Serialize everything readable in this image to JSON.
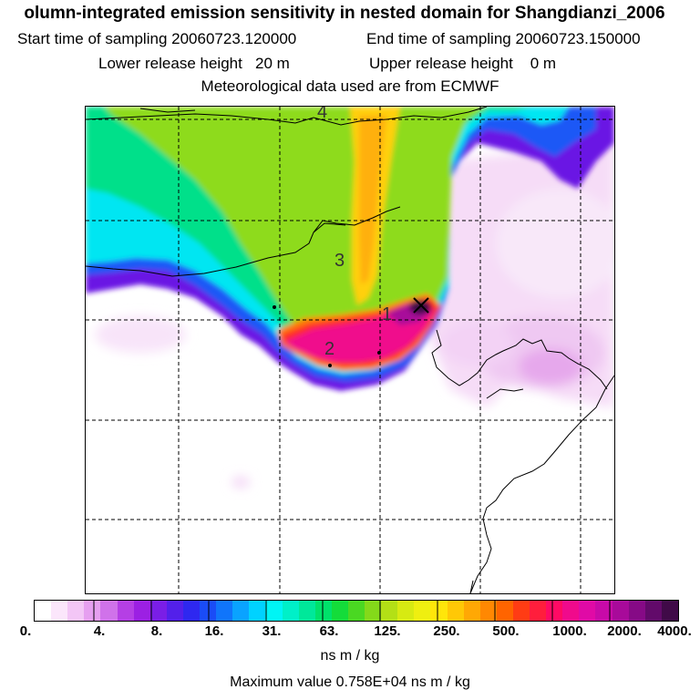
{
  "title": {
    "main": "olumn-integrated emission sensitivity in nested domain for Shangdianzi_2006",
    "start_label": "Start time of sampling",
    "start_value": "20060723.120000",
    "end_label": "End time of sampling",
    "end_value": "20060723.150000",
    "lower_label": "Lower release height",
    "lower_value": "20 m",
    "upper_label": "Upper release height",
    "upper_value": "0 m",
    "met_line": "Meteorological data used are from ECMWF"
  },
  "map": {
    "trajectory_labels": [
      "1",
      "2",
      "3",
      "4"
    ],
    "station_marker": "receptor-cross",
    "grid": "dashed"
  },
  "colorbar": {
    "colors": [
      "#ffffff",
      "#fbe6fb",
      "#f3c6f6",
      "#e69ff0",
      "#d072ea",
      "#b53fe5",
      "#9c20e3",
      "#7a1ee6",
      "#5320ea",
      "#2e28f0",
      "#1a4cf7",
      "#1075fb",
      "#0aa3ff",
      "#00d2ff",
      "#00f5f5",
      "#00f0c8",
      "#00e89a",
      "#00e26a",
      "#14dc3a",
      "#4ad822",
      "#84d91a",
      "#b3e016",
      "#d7ea12",
      "#efef10",
      "#ffe60a",
      "#ffc806",
      "#ffa804",
      "#ff8802",
      "#ff6400",
      "#ff3c14",
      "#ff1e3c",
      "#ff0a64",
      "#f00a8c",
      "#e00aa6",
      "#c80aa8",
      "#a80a9a",
      "#860a86",
      "#620a6a",
      "#400a48"
    ],
    "tick_labels": [
      "0.",
      "4.",
      "8.",
      "16.",
      "31.",
      "63.",
      "125.",
      "250.",
      "500.",
      "1000.",
      "2000.",
      "4000."
    ],
    "unit": "ns m / kg"
  },
  "max_value_text": "Maximum value  0.758E+04 ns m / kg"
}
